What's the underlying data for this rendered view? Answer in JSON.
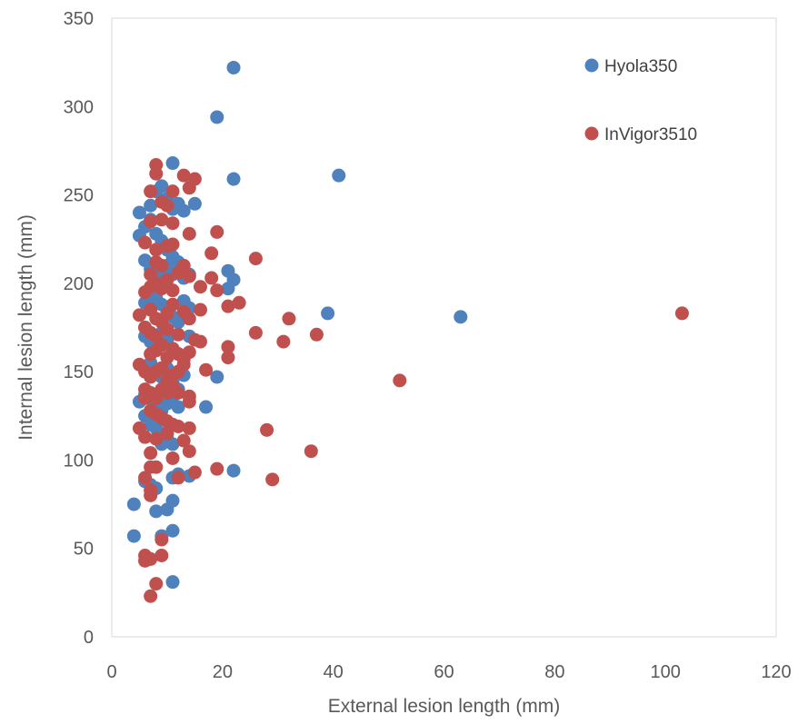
{
  "chart_data": {
    "type": "scatter",
    "title": "",
    "xlabel": "External lesion length (mm)",
    "ylabel": "Internal lesion length (mm)",
    "xlim": [
      0,
      120
    ],
    "ylim": [
      0,
      350
    ],
    "xticks": [
      0,
      20,
      40,
      60,
      80,
      100,
      120
    ],
    "yticks": [
      0,
      50,
      100,
      150,
      200,
      250,
      300,
      350
    ],
    "grid": false,
    "legend_position": "top-right",
    "series": [
      {
        "name": "Hyola350",
        "color": "#4f81bd",
        "points": [
          [
            22,
            322
          ],
          [
            19,
            294
          ],
          [
            41,
            261
          ],
          [
            22,
            259
          ],
          [
            11,
            268
          ],
          [
            5,
            240
          ],
          [
            7,
            244
          ],
          [
            8,
            252
          ],
          [
            9,
            255
          ],
          [
            10,
            248
          ],
          [
            11,
            242
          ],
          [
            12,
            245
          ],
          [
            13,
            241
          ],
          [
            15,
            245
          ],
          [
            5,
            227
          ],
          [
            6,
            232
          ],
          [
            7,
            236
          ],
          [
            8,
            228
          ],
          [
            9,
            224
          ],
          [
            10,
            219
          ],
          [
            11,
            215
          ],
          [
            12,
            212
          ],
          [
            6,
            213
          ],
          [
            7,
            208
          ],
          [
            8,
            204
          ],
          [
            9,
            207
          ],
          [
            10,
            210
          ],
          [
            11,
            205
          ],
          [
            13,
            203
          ],
          [
            14,
            205
          ],
          [
            21,
            207
          ],
          [
            22,
            202
          ],
          [
            21,
            197
          ],
          [
            6,
            189
          ],
          [
            7,
            186
          ],
          [
            8,
            192
          ],
          [
            9,
            188
          ],
          [
            10,
            184
          ],
          [
            11,
            181
          ],
          [
            12,
            178
          ],
          [
            13,
            190
          ],
          [
            14,
            186
          ],
          [
            39,
            183
          ],
          [
            63,
            181
          ],
          [
            6,
            175
          ],
          [
            6,
            170
          ],
          [
            7,
            167
          ],
          [
            8,
            165
          ],
          [
            9,
            172
          ],
          [
            10,
            168
          ],
          [
            11,
            163
          ],
          [
            12,
            160
          ],
          [
            13,
            158
          ],
          [
            14,
            170
          ],
          [
            7,
            155
          ],
          [
            8,
            150
          ],
          [
            9,
            147
          ],
          [
            10,
            152
          ],
          [
            11,
            144
          ],
          [
            12,
            140
          ],
          [
            13,
            148
          ],
          [
            19,
            147
          ],
          [
            5,
            133
          ],
          [
            6,
            137
          ],
          [
            7,
            135
          ],
          [
            8,
            130
          ],
          [
            9,
            128
          ],
          [
            10,
            132
          ],
          [
            11,
            136
          ],
          [
            12,
            130
          ],
          [
            17,
            130
          ],
          [
            6,
            125
          ],
          [
            7,
            120
          ],
          [
            8,
            118
          ],
          [
            9,
            115
          ],
          [
            10,
            112
          ],
          [
            11,
            120
          ],
          [
            9,
            109
          ],
          [
            11,
            109
          ],
          [
            12,
            92
          ],
          [
            6,
            88
          ],
          [
            7,
            86
          ],
          [
            11,
            90
          ],
          [
            14,
            91
          ],
          [
            22,
            94
          ],
          [
            8,
            84
          ],
          [
            4,
            75
          ],
          [
            8,
            71
          ],
          [
            10,
            72
          ],
          [
            11,
            77
          ],
          [
            4,
            57
          ],
          [
            9,
            57
          ],
          [
            11,
            60
          ],
          [
            11,
            31
          ]
        ]
      },
      {
        "name": "InVigor3510",
        "color": "#c0504d",
        "points": [
          [
            8,
            267
          ],
          [
            8,
            262
          ],
          [
            13,
            261
          ],
          [
            15,
            259
          ],
          [
            7,
            252
          ],
          [
            11,
            252
          ],
          [
            14,
            254
          ],
          [
            9,
            246
          ],
          [
            10,
            244
          ],
          [
            7,
            235
          ],
          [
            9,
            236
          ],
          [
            11,
            234
          ],
          [
            14,
            228
          ],
          [
            19,
            229
          ],
          [
            6,
            223
          ],
          [
            8,
            219
          ],
          [
            10,
            221
          ],
          [
            11,
            222
          ],
          [
            18,
            217
          ],
          [
            26,
            214
          ],
          [
            8,
            212
          ],
          [
            9,
            210
          ],
          [
            13,
            210
          ],
          [
            7,
            205
          ],
          [
            12,
            206
          ],
          [
            14,
            204
          ],
          [
            18,
            203
          ],
          [
            6,
            195
          ],
          [
            7,
            198
          ],
          [
            8,
            200
          ],
          [
            9,
            197
          ],
          [
            10,
            202
          ],
          [
            11,
            196
          ],
          [
            16,
            198
          ],
          [
            19,
            196
          ],
          [
            21,
            187
          ],
          [
            23,
            189
          ],
          [
            5,
            182
          ],
          [
            7,
            185
          ],
          [
            8,
            180
          ],
          [
            9,
            178
          ],
          [
            10,
            183
          ],
          [
            11,
            188
          ],
          [
            13,
            184
          ],
          [
            14,
            180
          ],
          [
            16,
            185
          ],
          [
            32,
            180
          ],
          [
            103,
            183
          ],
          [
            6,
            175
          ],
          [
            7,
            172
          ],
          [
            8,
            170
          ],
          [
            10,
            174
          ],
          [
            12,
            171
          ],
          [
            26,
            172
          ],
          [
            31,
            167
          ],
          [
            37,
            171
          ],
          [
            15,
            168
          ],
          [
            16,
            167
          ],
          [
            7,
            160
          ],
          [
            8,
            162
          ],
          [
            9,
            165
          ],
          [
            10,
            158
          ],
          [
            11,
            163
          ],
          [
            12,
            160
          ],
          [
            13,
            157
          ],
          [
            14,
            161
          ],
          [
            21,
            164
          ],
          [
            21,
            158
          ],
          [
            5,
            154
          ],
          [
            6,
            150
          ],
          [
            7,
            147
          ],
          [
            8,
            150
          ],
          [
            9,
            152
          ],
          [
            10,
            145
          ],
          [
            11,
            148
          ],
          [
            12,
            150
          ],
          [
            13,
            154
          ],
          [
            17,
            151
          ],
          [
            52,
            145
          ],
          [
            6,
            140
          ],
          [
            7,
            138
          ],
          [
            8,
            135
          ],
          [
            9,
            140
          ],
          [
            10,
            138
          ],
          [
            11,
            142
          ],
          [
            12,
            138
          ],
          [
            14,
            136
          ],
          [
            14,
            133
          ],
          [
            6,
            135
          ],
          [
            7,
            128
          ],
          [
            8,
            126
          ],
          [
            9,
            124
          ],
          [
            10,
            122
          ],
          [
            11,
            120
          ],
          [
            12,
            119
          ],
          [
            14,
            118
          ],
          [
            5,
            118
          ],
          [
            6,
            113
          ],
          [
            8,
            112
          ],
          [
            10,
            115
          ],
          [
            13,
            111
          ],
          [
            28,
            117
          ],
          [
            7,
            104
          ],
          [
            14,
            105
          ],
          [
            11,
            101
          ],
          [
            36,
            105
          ],
          [
            7,
            96
          ],
          [
            8,
            96
          ],
          [
            12,
            90
          ],
          [
            15,
            93
          ],
          [
            19,
            95
          ],
          [
            29,
            89
          ],
          [
            6,
            90
          ],
          [
            7,
            83
          ],
          [
            7,
            80
          ],
          [
            9,
            55
          ],
          [
            6,
            46
          ],
          [
            9,
            46
          ],
          [
            6,
            43
          ],
          [
            7,
            44
          ],
          [
            8,
            30
          ],
          [
            7,
            23
          ]
        ]
      }
    ]
  }
}
